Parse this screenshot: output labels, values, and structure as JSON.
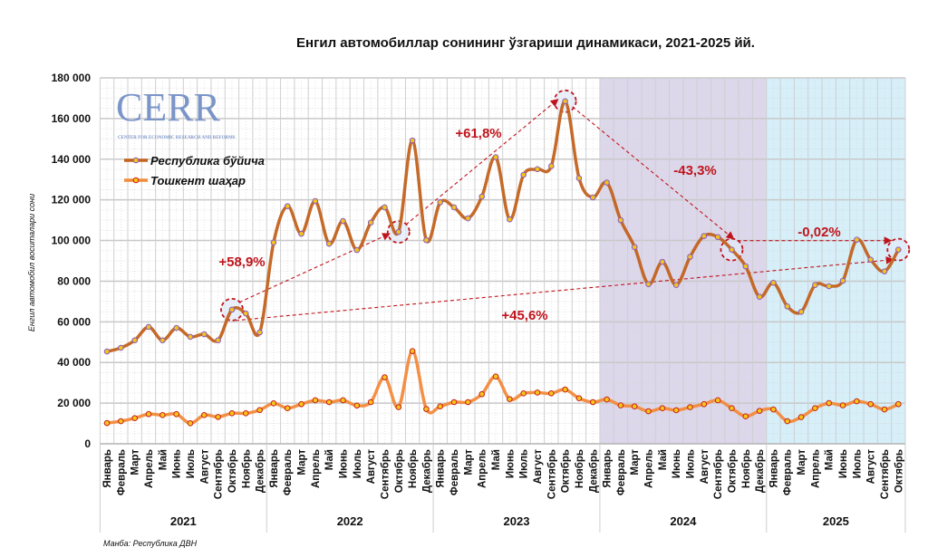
{
  "chart_data": {
    "type": "line",
    "title": "Енгил автомобиллар сонининг ўзгариши динамикаси, 2021-2025 йй.",
    "ylabel": "Енгил автомобил воситалари сони",
    "ylim": [
      0,
      180000
    ],
    "yticks": [
      0,
      20000,
      40000,
      60000,
      80000,
      100000,
      120000,
      140000,
      160000,
      180000
    ],
    "ytick_labels": [
      "0",
      "20 000",
      "40 000",
      "60 000",
      "80 000",
      "100 000",
      "120 000",
      "140 000",
      "160 000",
      "180 000"
    ],
    "grid": true,
    "legend_placement": "top-left",
    "months": [
      "Январь",
      "Февраль",
      "Март",
      "Апрель",
      "Май",
      "Июнь",
      "Июль",
      "Август",
      "Сентябрь",
      "Октябрь",
      "Ноябрь",
      "Декабрь"
    ],
    "years": [
      {
        "label": "2021",
        "months": 12
      },
      {
        "label": "2022",
        "months": 12
      },
      {
        "label": "2023",
        "months": 12
      },
      {
        "label": "2024",
        "months": 12,
        "shade": "#dcd7ea"
      },
      {
        "label": "2025",
        "months": 10,
        "shade": "#d6eff9"
      }
    ],
    "series": [
      {
        "name": "Республика бўйича",
        "color": "#c2621e",
        "marker_edge": "#8a5bc4",
        "marker_fill": "#f2c21a",
        "values": [
          45400,
          47200,
          50900,
          57500,
          50900,
          57000,
          52600,
          53900,
          50900,
          66000,
          64100,
          54800,
          99000,
          116900,
          103300,
          119400,
          98400,
          109600,
          95300,
          108800,
          116300,
          104200,
          149200,
          100200,
          118800,
          116300,
          110900,
          121600,
          141000,
          110400,
          132300,
          135100,
          136600,
          168500,
          130700,
          121200,
          128500,
          110000,
          96800,
          78500,
          89500,
          78100,
          92000,
          102200,
          101700,
          95500,
          87300,
          72300,
          79200,
          67600,
          64900,
          78100,
          77500,
          80200,
          100400,
          90600,
          84800,
          95500
        ]
      },
      {
        "name": "Тошкент шаҳар",
        "color": "#f28a3c",
        "marker_edge": "#c81e1e",
        "marker_fill": "#f5c518",
        "values": [
          10200,
          11100,
          12600,
          14600,
          14100,
          14600,
          10100,
          14100,
          13200,
          15000,
          15000,
          16600,
          19900,
          17500,
          19500,
          21400,
          20500,
          21400,
          18800,
          20500,
          32700,
          18000,
          45600,
          17100,
          18400,
          20500,
          20500,
          24400,
          33100,
          22000,
          24800,
          25200,
          24800,
          26700,
          22400,
          20500,
          21800,
          18900,
          18400,
          16000,
          17500,
          16500,
          18000,
          19500,
          21400,
          17500,
          13500,
          16200,
          16900,
          11100,
          13100,
          17500,
          20000,
          18900,
          20900,
          19500,
          16900,
          19500
        ]
      }
    ],
    "annotations": [
      {
        "text": "+58,9%",
        "from": "Октябрь 2021",
        "to": "Октябрь 2022"
      },
      {
        "text": "+61,8%",
        "from": "Октябрь 2022",
        "to": "Октябрь 2023"
      },
      {
        "text": "-43,3%",
        "from": "Октябрь 2023",
        "to": "Октябрь 2024"
      },
      {
        "text": "-0,02%",
        "from": "Октябрь 2024",
        "to": "Октябрь 2025"
      },
      {
        "text": "+45,6%",
        "from": "Октябрь 2021",
        "to": "Октябрь 2025"
      }
    ],
    "annotation_color": "#c0141c",
    "source": "Манба: Республика ДВН",
    "logo": {
      "text": "CERR",
      "subtitle": "CENTER FOR ECONOMIC RESEARCH AND REFORMS",
      "color": "#7b95c8"
    }
  }
}
